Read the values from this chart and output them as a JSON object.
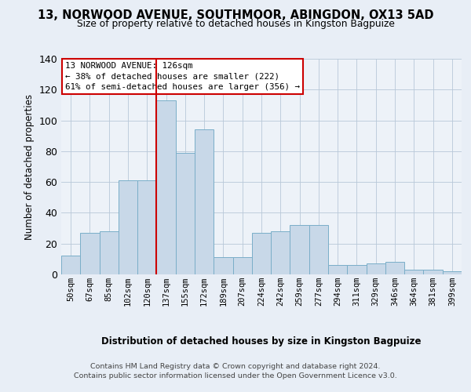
{
  "title1": "13, NORWOOD AVENUE, SOUTHMOOR, ABINGDON, OX13 5AD",
  "title2": "Size of property relative to detached houses in Kingston Bagpuize",
  "xlabel": "Distribution of detached houses by size in Kingston Bagpuize",
  "ylabel": "Number of detached properties",
  "categories": [
    "50sqm",
    "67sqm",
    "85sqm",
    "102sqm",
    "120sqm",
    "137sqm",
    "155sqm",
    "172sqm",
    "189sqm",
    "207sqm",
    "224sqm",
    "242sqm",
    "259sqm",
    "277sqm",
    "294sqm",
    "311sqm",
    "329sqm",
    "346sqm",
    "364sqm",
    "381sqm",
    "399sqm"
  ],
  "bar_heights": [
    12,
    27,
    28,
    61,
    61,
    113,
    79,
    94,
    11,
    11,
    27,
    28,
    32,
    32,
    6,
    6,
    7,
    8,
    3,
    3,
    2
  ],
  "bar_color": "#c8d8e8",
  "bar_edgecolor": "#7aaec8",
  "vline_pos": 4.5,
  "vline_color": "#cc0000",
  "annotation_line1": "13 NORWOOD AVENUE: 126sqm",
  "annotation_line2": "← 38% of detached houses are smaller (222)",
  "annotation_line3": "61% of semi-detached houses are larger (356) →",
  "ylim": [
    0,
    140
  ],
  "yticks": [
    0,
    20,
    40,
    60,
    80,
    100,
    120,
    140
  ],
  "footer1": "Contains HM Land Registry data © Crown copyright and database right 2024.",
  "footer2": "Contains public sector information licensed under the Open Government Licence v3.0.",
  "fig_bg": "#e8eef6",
  "plot_bg": "#edf2f8"
}
